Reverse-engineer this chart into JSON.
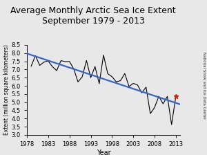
{
  "title": "Average Monthly Arctic Sea Ice Extent\nSeptember 1979 - 2013",
  "xlabel": "Year",
  "ylabel": "Extent (million square kilometers)",
  "xlim": [
    1978,
    2014
  ],
  "ylim": [
    3.0,
    8.5
  ],
  "yticks": [
    3.0,
    3.5,
    4.0,
    4.5,
    5.0,
    5.5,
    6.0,
    6.5,
    7.0,
    7.5,
    8.0,
    8.5
  ],
  "xticks": [
    1978,
    1983,
    1988,
    1993,
    1998,
    2003,
    2008,
    2013
  ],
  "years": [
    1979,
    1980,
    1981,
    1982,
    1983,
    1984,
    1985,
    1986,
    1987,
    1988,
    1989,
    1990,
    1991,
    1992,
    1993,
    1994,
    1995,
    1996,
    1997,
    1998,
    1999,
    2000,
    2001,
    2002,
    2003,
    2004,
    2005,
    2006,
    2007,
    2008,
    2009,
    2010,
    2011,
    2012,
    2013
  ],
  "values": [
    7.2,
    7.85,
    7.25,
    7.45,
    7.52,
    7.17,
    6.93,
    7.54,
    7.48,
    7.49,
    7.04,
    6.24,
    6.55,
    7.55,
    6.5,
    7.18,
    6.13,
    7.88,
    6.74,
    6.56,
    6.24,
    6.32,
    6.75,
    5.96,
    6.15,
    6.05,
    5.57,
    5.92,
    4.3,
    4.67,
    5.36,
    4.9,
    5.35,
    3.63,
    5.35
  ],
  "trend_color": "#3366CC",
  "line_color": "#000000",
  "special_point_year": 2013,
  "special_point_value": 5.35,
  "special_point_color": "#cc2200",
  "sidebar_text": "National Snow and Ice Data Center",
  "bg_color": "#e8e8e8",
  "plot_bg_color": "#e8e8e8",
  "title_fontsize": 9,
  "ylabel_fontsize": 5.5,
  "xlabel_fontsize": 7,
  "tick_fontsize": 6
}
